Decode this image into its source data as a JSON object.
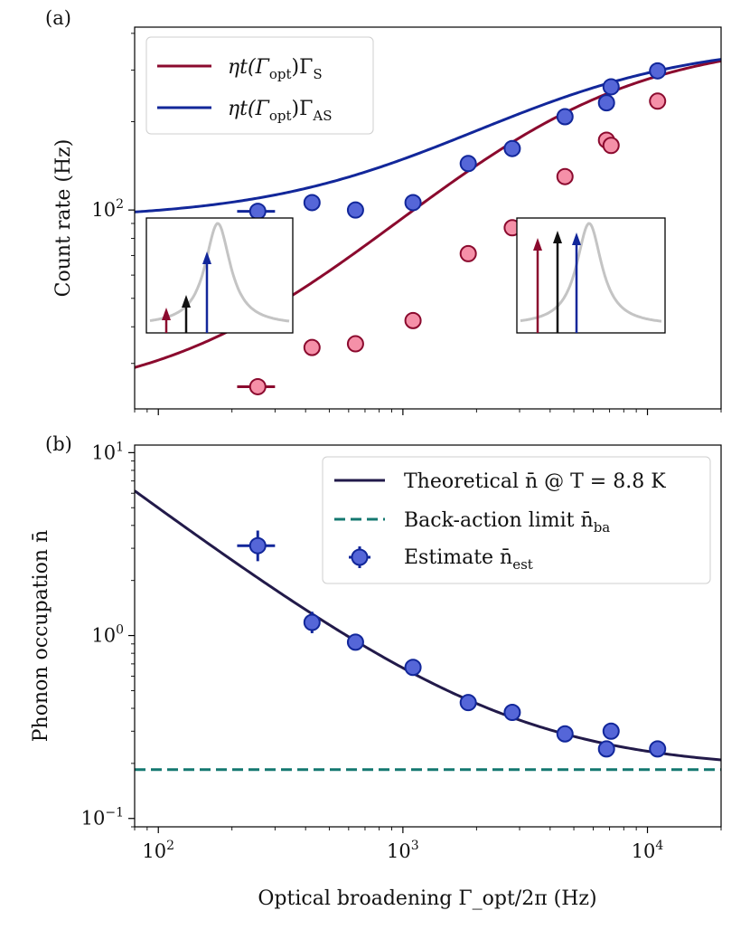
{
  "colors": {
    "stokes": "#8b0a2e",
    "stokes_fill": "#f590a8",
    "antistokes": "#12279a",
    "antistokes_fill": "#5566d8",
    "theory": "#221a4a",
    "backaction": "#147870",
    "inset_peak": "#c4c4c4",
    "inset_mid_arrow": "#111111"
  },
  "shared_axis": {
    "xlabel": "Optical broadening Γ_opt/2π (Hz)",
    "xlim": [
      80,
      20000
    ],
    "xticks": [
      {
        "value": 100,
        "label_base": "10",
        "label_exp": "2"
      },
      {
        "value": 1000,
        "label_base": "10",
        "label_exp": "3"
      },
      {
        "value": 10000,
        "label_base": "10",
        "label_exp": "4"
      }
    ]
  },
  "chart_data": [
    {
      "panel": "(a)",
      "type": "scatter",
      "ylabel": "Count rate (Hz)",
      "yscale": "log",
      "ylim": [
        21,
        420
      ],
      "yticks": [
        {
          "value": 100,
          "label_base": "10",
          "label_exp": "2"
        }
      ],
      "legend": {
        "position": "top-left",
        "entries": [
          {
            "prefix": "ηt(Γ",
            "sub1": "opt",
            "mid": ")Γ",
            "sub2": "S",
            "series": "stokes"
          },
          {
            "prefix": "ηt(Γ",
            "sub1": "opt",
            "mid": ")Γ",
            "sub2": "AS",
            "series": "antistokes"
          }
        ]
      },
      "series": [
        {
          "name": "ηt(Γ_opt)Γ_S",
          "key": "stokes",
          "points": [
            {
              "x": 255,
              "y": 25,
              "xerr": 45
            },
            {
              "x": 425,
              "y": 34,
              "xerr": 25
            },
            {
              "x": 640,
              "y": 35
            },
            {
              "x": 1100,
              "y": 42
            },
            {
              "x": 1850,
              "y": 71
            },
            {
              "x": 2800,
              "y": 87
            },
            {
              "x": 4600,
              "y": 130
            },
            {
              "x": 6800,
              "y": 173
            },
            {
              "x": 7100,
              "y": 166
            },
            {
              "x": 11000,
              "y": 235
            }
          ],
          "fit": {
            "model": "A*G/(G+g)+B",
            "A": 360,
            "g": 4000,
            "B": 22
          }
        },
        {
          "name": "ηt(Γ_opt)Γ_AS",
          "key": "antistokes",
          "points": [
            {
              "x": 255,
              "y": 99,
              "xerr": 45
            },
            {
              "x": 425,
              "y": 106,
              "xerr": 25
            },
            {
              "x": 640,
              "y": 100
            },
            {
              "x": 1100,
              "y": 106
            },
            {
              "x": 1850,
              "y": 144
            },
            {
              "x": 2800,
              "y": 162
            },
            {
              "x": 4600,
              "y": 208
            },
            {
              "x": 6800,
              "y": 232
            },
            {
              "x": 7100,
              "y": 263
            },
            {
              "x": 11000,
              "y": 298
            }
          ],
          "fit": {
            "model": "A*G/(G+g)+B",
            "A": 280,
            "g": 4000,
            "B": 93
          }
        }
      ]
    },
    {
      "panel": "(b)",
      "type": "scatter",
      "ylabel": "Phonon occupation n̄",
      "yscale": "log",
      "ylim": [
        0.09,
        11
      ],
      "yticks": [
        {
          "value": 0.1,
          "label_base": "10",
          "label_exp": "−1"
        },
        {
          "value": 1,
          "label_base": "10",
          "label_exp": "0"
        },
        {
          "value": 10,
          "label_base": "10",
          "label_exp": "1"
        }
      ],
      "legend": {
        "position": "top-right",
        "entries": [
          {
            "text": "Theoretical n̄ @ T = 8.8 K",
            "series": "theory",
            "marker": "line"
          },
          {
            "text": "Back-action limit n̄",
            "sub": "ba",
            "series": "backaction",
            "marker": "dashed"
          },
          {
            "text": "Estimate n̄",
            "sub": "est",
            "series": "estimate",
            "marker": "point-errorbar"
          }
        ]
      },
      "series": [
        {
          "name": "Estimate n̄_est",
          "key": "estimate",
          "points": [
            {
              "x": 255,
              "y": 3.1,
              "xerr": 45,
              "yerr": [
                0.55,
                0.65
              ]
            },
            {
              "x": 425,
              "y": 1.18,
              "xerr": 25,
              "yerr": [
                0.15,
                0.17
              ]
            },
            {
              "x": 640,
              "y": 0.92
            },
            {
              "x": 1100,
              "y": 0.67
            },
            {
              "x": 1850,
              "y": 0.43
            },
            {
              "x": 2800,
              "y": 0.38
            },
            {
              "x": 4600,
              "y": 0.29
            },
            {
              "x": 6800,
              "y": 0.24
            },
            {
              "x": 7100,
              "y": 0.3
            },
            {
              "x": 11000,
              "y": 0.24
            }
          ]
        },
        {
          "name": "Theoretical n̄ @ T = 8.8 K",
          "key": "theory",
          "fit": {
            "model": "nba + C/G",
            "nba": 0.185,
            "C": 480
          }
        },
        {
          "name": "Back-action limit n̄_ba",
          "key": "backaction",
          "constant": 0.185
        }
      ]
    }
  ]
}
